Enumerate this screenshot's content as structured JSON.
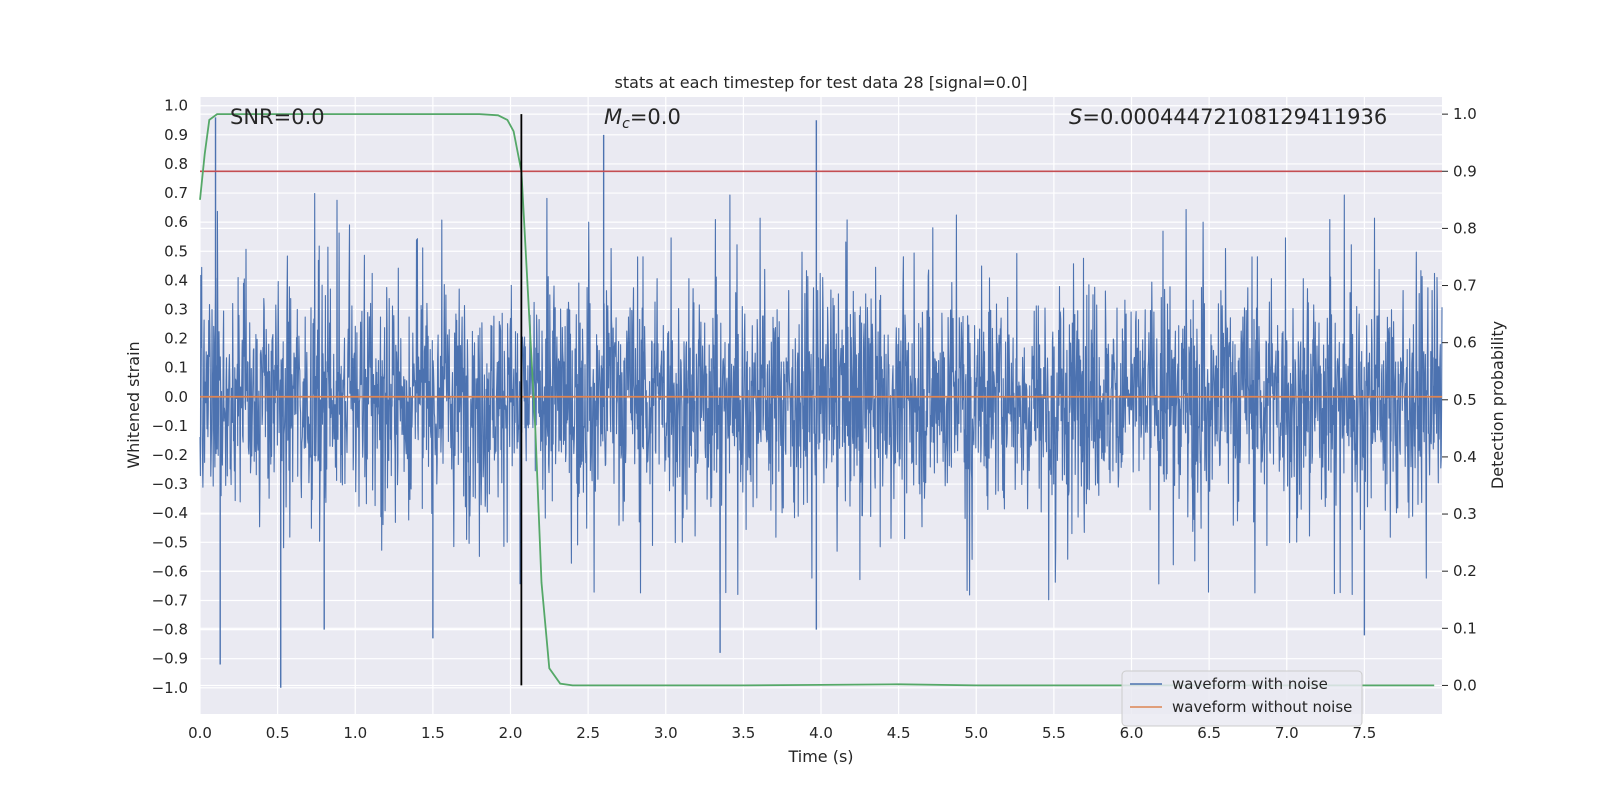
{
  "chart_data": {
    "type": "line",
    "title": "stats at each timestep for test data 28 [signal=0.0]",
    "xlabel": "Time (s)",
    "ylabel": "Whitened strain",
    "y2label": "Detection probability",
    "xlim": [
      0,
      8.0
    ],
    "ylim": [
      -1.09,
      1.03
    ],
    "y2lim": [
      -0.05,
      1.03
    ],
    "xticks": [
      0.0,
      0.5,
      1.0,
      1.5,
      2.0,
      2.5,
      3.0,
      3.5,
      4.0,
      4.5,
      5.0,
      5.5,
      6.0,
      6.5,
      7.0,
      7.5
    ],
    "xtick_labels": [
      "0.0",
      "0.5",
      "1.0",
      "1.5",
      "2.0",
      "2.5",
      "3.0",
      "3.5",
      "4.0",
      "4.5",
      "5.0",
      "5.5",
      "6.0",
      "6.5",
      "7.0",
      "7.5"
    ],
    "yticks": [
      1.0,
      0.9,
      0.8,
      0.7,
      0.6,
      0.5,
      0.4,
      0.3,
      0.2,
      0.1,
      0.0,
      -0.1,
      -0.2,
      -0.3,
      -0.4,
      -0.5,
      -0.6,
      -0.7,
      -0.8,
      -0.9,
      -1.0
    ],
    "ytick_labels": [
      "1.0",
      "0.9",
      "0.8",
      "0.7",
      "0.6",
      "0.5",
      "0.4",
      "0.3",
      "0.2",
      "0.1",
      "0.0",
      "−0.1",
      "−0.2",
      "−0.3",
      "−0.4",
      "−0.5",
      "−0.6",
      "−0.7",
      "−0.8",
      "−0.9",
      "−1.0"
    ],
    "y2ticks": [
      1.0,
      0.9,
      0.8,
      0.7,
      0.6,
      0.5,
      0.4,
      0.3,
      0.2,
      0.1,
      0.0
    ],
    "y2tick_labels": [
      "1.0",
      "0.9",
      "0.8",
      "0.7",
      "0.6",
      "0.5",
      "0.4",
      "0.3",
      "0.2",
      "0.1",
      "0.0"
    ],
    "annotations": {
      "snr": "SNR=0.0",
      "mc_symbol": "M",
      "mc_sub": "c",
      "mc_value": "=0.0",
      "s_symbol": "S",
      "s_value": "=0.00044472108129411936"
    },
    "legend": {
      "location": "lower-right",
      "entries": [
        {
          "label": "waveform with noise",
          "color": "#4c72b0"
        },
        {
          "label": "waveform without noise",
          "color": "#dd8452"
        }
      ]
    },
    "series": [
      {
        "name": "waveform with noise",
        "color": "#4c72b0",
        "description": "whitened noise strain sampled over 0–8 s, envelope roughly ±0.45 with spikes up to 0.95 and down to −1.0",
        "typical_amplitude": 0.45,
        "peaks": [
          {
            "t": 0.1,
            "v": 0.96
          },
          {
            "t": 0.52,
            "v": -1.0
          },
          {
            "t": 0.13,
            "v": -0.92
          },
          {
            "t": 3.97,
            "v": 0.95
          },
          {
            "t": 2.6,
            "v": 0.9
          },
          {
            "t": 3.35,
            "v": -0.88
          },
          {
            "t": 1.5,
            "v": -0.83
          },
          {
            "t": 0.8,
            "v": -0.8
          },
          {
            "t": 3.97,
            "v": -0.8
          },
          {
            "t": 5.18,
            "v": -0.27
          },
          {
            "t": 7.5,
            "v": -0.82
          }
        ]
      },
      {
        "name": "waveform without noise",
        "color": "#dd8452",
        "x": [
          0.0,
          8.0
        ],
        "y": [
          0.0,
          0.0
        ]
      },
      {
        "name": "detection probability",
        "color": "#55a868",
        "axis": "right",
        "x": [
          0.0,
          0.03,
          0.06,
          0.11,
          0.2,
          0.5,
          1.0,
          1.5,
          1.8,
          1.92,
          1.98,
          2.02,
          2.07,
          2.12,
          2.16,
          2.2,
          2.25,
          2.32,
          2.4,
          3.0,
          3.5,
          4.0,
          4.5,
          5.0,
          6.0,
          7.0,
          7.95
        ],
        "y": [
          0.85,
          0.93,
          0.99,
          1.0,
          1.0,
          1.0,
          1.0,
          1.0,
          1.0,
          0.998,
          0.99,
          0.97,
          0.9,
          0.65,
          0.45,
          0.18,
          0.03,
          0.003,
          0.0,
          0.0,
          0.0,
          0.001,
          0.002,
          0.0,
          0.0,
          0.0,
          0.0
        ]
      }
    ],
    "threshold_line": {
      "axis": "right",
      "value": 0.9,
      "color": "#c44e52"
    },
    "vertical_marker": {
      "x": 2.07,
      "color": "#000000"
    }
  }
}
